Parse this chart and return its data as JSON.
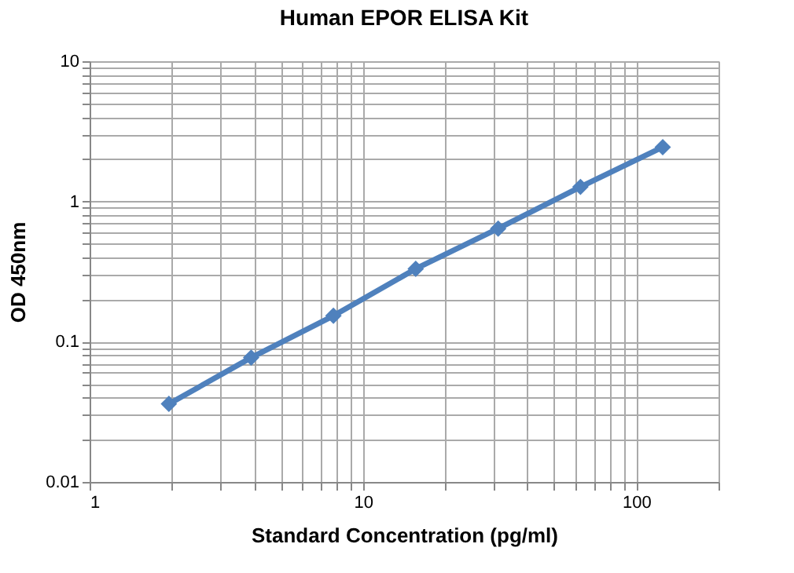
{
  "chart_data": {
    "type": "line",
    "title": "Human  EPOR ELISA Kit",
    "xlabel": "Standard Concentration (pg/ml)",
    "ylabel": "OD 450nm",
    "x": [
      1.95,
      3.9,
      7.8,
      15.6,
      31.25,
      62.5,
      125
    ],
    "series": [
      {
        "color": "#4f81bd",
        "values": [
          0.036,
          0.077,
          0.153,
          0.331,
          0.641,
          1.27,
          2.44
        ]
      }
    ],
    "log": "xy",
    "marker": "diamond",
    "line_style": "solid",
    "grid": true,
    "xlim": [
      1,
      200
    ],
    "ylim": [
      0.01,
      10
    ],
    "xticks": [
      1,
      {
        "value": 2,
        "label": null
      },
      {
        "value": 3,
        "label": null
      },
      {
        "value": 4,
        "label": null
      },
      {
        "value": 5,
        "label": null
      },
      {
        "value": 6,
        "label": null
      },
      {
        "value": 7,
        "label": null
      },
      {
        "value": 8,
        "label": null
      },
      {
        "value": 9,
        "label": null
      },
      10,
      {
        "value": 20,
        "label": null
      },
      {
        "value": 30,
        "label": null
      },
      {
        "value": 40,
        "label": null
      },
      {
        "value": 50,
        "label": null
      },
      {
        "value": 60,
        "label": null
      },
      {
        "value": 70,
        "label": null
      },
      {
        "value": 80,
        "label": null
      },
      {
        "value": 90,
        "label": null
      },
      100,
      {
        "value": 200,
        "label": null
      }
    ],
    "yticks": [
      0.01,
      {
        "value": 0.02,
        "label": null
      },
      {
        "value": 0.03,
        "label": null
      },
      {
        "value": 0.04,
        "label": null
      },
      {
        "value": 0.05,
        "label": null
      },
      {
        "value": 0.06,
        "label": null
      },
      {
        "value": 0.07,
        "label": null
      },
      {
        "value": 0.08,
        "label": null
      },
      {
        "value": 0.09,
        "label": null
      },
      0.1,
      {
        "value": 0.2,
        "label": null
      },
      {
        "value": 0.3,
        "label": null
      },
      {
        "value": 0.4,
        "label": null
      },
      {
        "value": 0.5,
        "label": null
      },
      {
        "value": 0.6,
        "label": null
      },
      {
        "value": 0.7,
        "label": null
      },
      {
        "value": 0.8,
        "label": null
      },
      {
        "value": 0.9,
        "label": null
      },
      1,
      {
        "value": 2,
        "label": null
      },
      {
        "value": 3,
        "label": null
      },
      {
        "value": 4,
        "label": null
      },
      {
        "value": 5,
        "label": null
      },
      {
        "value": 6,
        "label": null
      },
      {
        "value": 7,
        "label": null
      },
      {
        "value": 8,
        "label": null
      },
      {
        "value": 9,
        "label": null
      },
      10
    ]
  }
}
